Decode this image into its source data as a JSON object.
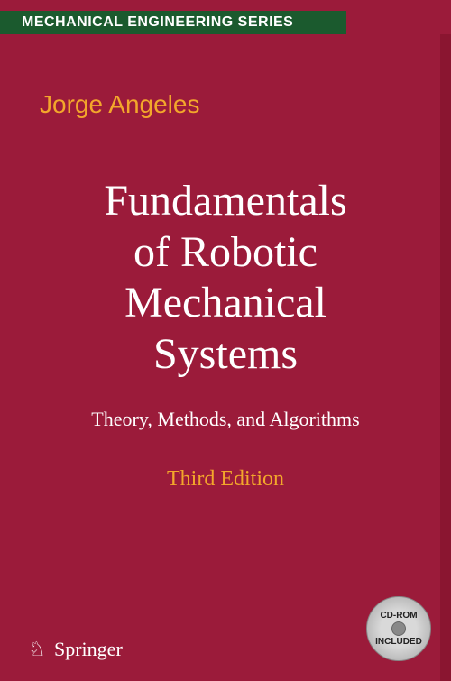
{
  "colors": {
    "cover_bg": "#9b1b3a",
    "series_bar_bg": "#1b5a2e",
    "series_text": "#ffffff",
    "author_color": "#f3a72b",
    "title_color": "#ffffff",
    "subtitle_color": "#ffffff",
    "edition_color": "#f3a72b",
    "publisher_color": "#ffffff",
    "cdrom_bg": "#d9d9d9",
    "cdrom_border": "#888888",
    "cdrom_text": "#222222",
    "cdrom_hole": "#888888",
    "side_strip": "#8a1530"
  },
  "typography": {
    "series_fontsize": 16,
    "author_fontsize": 28,
    "title_fontsize": 48,
    "subtitle_fontsize": 22,
    "edition_fontsize": 24,
    "publisher_fontsize": 22,
    "cdrom_fontsize": 10
  },
  "series": {
    "label": "MECHANICAL ENGINEERING SERIES"
  },
  "author": {
    "name": "Jorge Angeles"
  },
  "title": {
    "line1": "Fundamentals",
    "line2": "of Robotic",
    "line3": "Mechanical",
    "line4": "Systems"
  },
  "subtitle": {
    "text": "Theory, Methods, and Algorithms"
  },
  "edition": {
    "text": "Third Edition"
  },
  "publisher": {
    "name": "Springer",
    "logo_symbol": "♘"
  },
  "cdrom": {
    "top": "CD-ROM",
    "bottom": "INCLUDED"
  }
}
